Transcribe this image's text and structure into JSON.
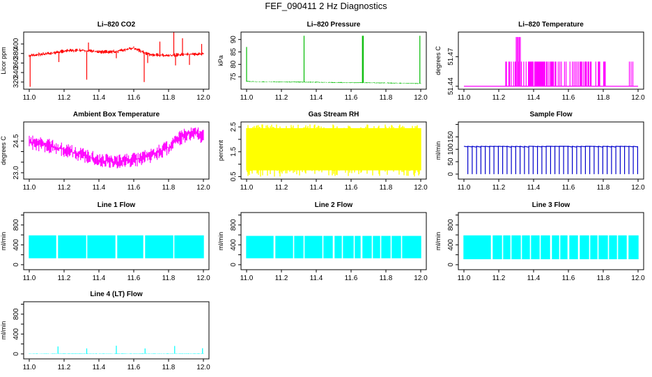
{
  "title": "FEF_090411  2 Hz Diagnostics",
  "colors": {
    "red": "#ff0000",
    "green": "#00bb00",
    "magenta": "#ff00ff",
    "yellow": "#ffff00",
    "blue": "#0000cc",
    "cyan": "#00ffff",
    "axis": "#000000"
  },
  "chart_data": [
    {
      "id": "co2",
      "type": "line",
      "title": "Li–820 CO2",
      "ylabel": "Licor ppm",
      "color": "red",
      "xlim": [
        11.0,
        12.0
      ],
      "ylim": [
        305,
        425
      ],
      "yticks": [
        320,
        340,
        360,
        380,
        400
      ],
      "xticks": [
        11.0,
        11.2,
        11.4,
        11.6,
        11.8,
        12.0
      ],
      "xticklabels": [
        "11.0",
        "11.2",
        "11.4",
        "11.6",
        "11.8",
        "12.0"
      ],
      "x": [
        11.0,
        11.05,
        11.1,
        11.2,
        11.3,
        11.4,
        11.5,
        11.55,
        11.6,
        11.65,
        11.7,
        11.8,
        11.9,
        12.0
      ],
      "y": [
        375,
        378,
        379,
        385,
        387,
        383,
        384,
        388,
        392,
        383,
        377,
        376,
        378,
        379
      ],
      "band": 4,
      "spikes": [
        {
          "x": 11.005,
          "y": 310
        },
        {
          "x": 11.17,
          "y": 362
        },
        {
          "x": 11.33,
          "y": 325
        },
        {
          "x": 11.34,
          "y": 403
        },
        {
          "x": 11.5,
          "y": 370
        },
        {
          "x": 11.66,
          "y": 320
        },
        {
          "x": 11.68,
          "y": 360
        },
        {
          "x": 11.75,
          "y": 405
        },
        {
          "x": 11.83,
          "y": 425
        },
        {
          "x": 11.84,
          "y": 355
        },
        {
          "x": 11.88,
          "y": 412
        },
        {
          "x": 11.92,
          "y": 356
        },
        {
          "x": 11.99,
          "y": 400
        }
      ]
    },
    {
      "id": "pressure",
      "type": "line",
      "title": "Li–820 Pressure",
      "ylabel": "kPa",
      "color": "green",
      "xlim": [
        11.0,
        12.0
      ],
      "ylim": [
        70,
        93
      ],
      "yticks": [
        75,
        80,
        85,
        90
      ],
      "xticks": [
        11.0,
        11.2,
        11.4,
        11.6,
        11.8,
        12.0
      ],
      "xticklabels": [
        "11.0",
        "11.2",
        "11.4",
        "11.6",
        "11.8",
        "12.0"
      ],
      "x": [
        11.0,
        11.1,
        11.3,
        11.5,
        11.7,
        11.9,
        12.0
      ],
      "y": [
        73.1,
        73.0,
        72.9,
        72.7,
        72.6,
        72.4,
        72.3
      ],
      "band": 0.2,
      "spikes": [
        {
          "x": 11.0,
          "y": 87
        },
        {
          "x": 11.33,
          "y": 91.5
        },
        {
          "x": 11.665,
          "y": 91.5
        },
        {
          "x": 11.67,
          "y": 91.5
        },
        {
          "x": 11.995,
          "y": 91.5
        }
      ]
    },
    {
      "id": "licor_temp",
      "type": "step",
      "title": "Li–820 Temperature",
      "ylabel": "degrees C",
      "color": "magenta",
      "xlim": [
        11.0,
        12.0
      ],
      "ylim": [
        51.437,
        51.495
      ],
      "yticks": [
        51.44,
        51.47
      ],
      "xticks": [
        11.0,
        11.2,
        11.4,
        11.6,
        11.8,
        12.0
      ],
      "xticklabels": [
        "11.0",
        "11.2",
        "11.4",
        "11.6",
        "11.8",
        "12.0"
      ],
      "ytick_labels": [
        "51.44",
        "51.47"
      ],
      "low": 51.44,
      "mid": 51.465,
      "high": 51.49,
      "mid_range": [
        11.24,
        11.82
      ],
      "high_range": [
        11.3,
        11.33
      ],
      "extra_mid": [
        11.95,
        11.97
      ]
    },
    {
      "id": "ambient_temp",
      "type": "line",
      "title": "Ambient Box Temperature",
      "ylabel": "degrees C",
      "color": "magenta",
      "xlim": [
        11.0,
        12.0
      ],
      "ylim": [
        22.7,
        25.4
      ],
      "yticks": [
        23.0,
        23.5,
        24.0,
        24.5
      ],
      "ytick_labels": [
        "23.0",
        "",
        "",
        "24.5"
      ],
      "xticks": [
        11.0,
        11.2,
        11.4,
        11.6,
        11.8,
        12.0
      ],
      "xticklabels": [
        "11.0",
        "11.2",
        "11.4",
        "11.6",
        "11.8",
        "12.0"
      ],
      "x": [
        11.0,
        11.1,
        11.2,
        11.3,
        11.4,
        11.5,
        11.6,
        11.7,
        11.8,
        11.85,
        11.9,
        11.95,
        12.0
      ],
      "y": [
        24.45,
        24.3,
        24.1,
        23.85,
        23.6,
        23.5,
        23.6,
        23.8,
        24.2,
        24.55,
        24.8,
        24.9,
        24.7
      ],
      "band": 0.35
    },
    {
      "id": "rh",
      "type": "band",
      "title": "Gas Stream RH",
      "ylabel": "percent",
      "color": "yellow",
      "xlim": [
        11.0,
        12.0
      ],
      "ylim": [
        0.4,
        2.7
      ],
      "yticks": [
        0.5,
        1.0,
        1.5,
        2.0,
        2.5
      ],
      "ytick_labels": [
        "0.5",
        "",
        "1.5",
        "",
        "2.5"
      ],
      "xticks": [
        11.0,
        11.2,
        11.4,
        11.6,
        11.8,
        12.0
      ],
      "xticklabels": [
        "11.0",
        "11.2",
        "11.4",
        "11.6",
        "11.8",
        "12.0"
      ],
      "top": 2.45,
      "bottom": 0.75,
      "top_peak": 2.6,
      "bottom_min": 0.5
    },
    {
      "id": "sample_flow",
      "type": "pulses",
      "title": "Sample Flow",
      "ylabel": "ml/min",
      "color": "blue",
      "xlim": [
        11.0,
        12.0
      ],
      "ylim": [
        -20,
        210
      ],
      "yticks": [
        0,
        50,
        100,
        150,
        200
      ],
      "ytick_labels": [
        "0",
        "50",
        "100",
        "150",
        ""
      ],
      "xticks": [
        11.0,
        11.2,
        11.4,
        11.6,
        11.8,
        12.0
      ],
      "xticklabels": [
        "11.0",
        "11.2",
        "11.4",
        "11.6",
        "11.8",
        "12.0"
      ],
      "level": 112,
      "drop": 0,
      "count": 40
    },
    {
      "id": "line1_flow",
      "type": "band",
      "title": "Line 1 Flow",
      "ylabel": "ml/min",
      "color": "cyan",
      "xlim": [
        11.0,
        12.0
      ],
      "ylim": [
        -100,
        1050
      ],
      "yticks": [
        0,
        200,
        400,
        600,
        800,
        1000
      ],
      "ytick_labels": [
        "0",
        "",
        "400",
        "",
        "800",
        ""
      ],
      "xticks": [
        11.0,
        11.2,
        11.4,
        11.6,
        11.8,
        12.0
      ],
      "xticklabels": [
        "11.0",
        "11.2",
        "11.4",
        "11.6",
        "11.8",
        "12.0"
      ],
      "top": 590,
      "bottom": 130,
      "gaps": [
        11.16,
        11.33,
        11.5,
        11.66,
        11.83
      ]
    },
    {
      "id": "line2_flow",
      "type": "band",
      "title": "Line 2 Flow",
      "ylabel": "ml/min",
      "color": "cyan",
      "xlim": [
        11.0,
        12.0
      ],
      "ylim": [
        -100,
        1050
      ],
      "yticks": [
        0,
        200,
        400,
        600,
        800,
        1000
      ],
      "ytick_labels": [
        "0",
        "",
        "400",
        "",
        "800",
        ""
      ],
      "xticks": [
        11.0,
        11.2,
        11.4,
        11.6,
        11.8,
        12.0
      ],
      "xticklabels": [
        "11.0",
        "11.2",
        "11.4",
        "11.6",
        "11.8",
        "12.0"
      ],
      "top": 580,
      "bottom": 130,
      "gaps": [
        11.16,
        11.27,
        11.33,
        11.44,
        11.5,
        11.55,
        11.62,
        11.66,
        11.72,
        11.77,
        11.83,
        11.89
      ]
    },
    {
      "id": "line3_flow",
      "type": "band",
      "title": "Line 3 Flow",
      "ylabel": "ml/min",
      "color": "cyan",
      "xlim": [
        11.0,
        12.0
      ],
      "ylim": [
        -100,
        1050
      ],
      "yticks": [
        0,
        200,
        400,
        600,
        800,
        1000
      ],
      "ytick_labels": [
        "0",
        "",
        "400",
        "",
        "800",
        ""
      ],
      "xticks": [
        11.0,
        11.2,
        11.4,
        11.6,
        11.8,
        12.0
      ],
      "xticklabels": [
        "11.0",
        "11.2",
        "11.4",
        "11.6",
        "11.8",
        "12.0"
      ],
      "top": 590,
      "bottom": 110,
      "gaps": [
        11.16,
        11.22,
        11.27,
        11.33,
        11.38,
        11.44,
        11.5,
        11.55,
        11.6,
        11.66,
        11.72,
        11.77,
        11.83,
        11.88,
        11.94
      ]
    },
    {
      "id": "line4_flow",
      "type": "line",
      "title": "Line 4 (LT) Flow",
      "ylabel": "ml/min",
      "color": "cyan",
      "xlim": [
        11.0,
        12.0
      ],
      "ylim": [
        -100,
        1050
      ],
      "yticks": [
        0,
        200,
        400,
        600,
        800,
        1000
      ],
      "ytick_labels": [
        "0",
        "",
        "400",
        "",
        "800",
        ""
      ],
      "xticks": [
        11.0,
        11.2,
        11.4,
        11.6,
        11.8,
        12.0
      ],
      "xticklabels": [
        "11.0",
        "11.2",
        "11.4",
        "11.6",
        "11.8",
        "12.0"
      ],
      "x": [
        11.0,
        12.0
      ],
      "y": [
        5,
        5
      ],
      "band": 6,
      "spikes": [
        {
          "x": 11.165,
          "y": 150
        },
        {
          "x": 11.33,
          "y": 110
        },
        {
          "x": 11.5,
          "y": 165
        },
        {
          "x": 11.665,
          "y": 110
        },
        {
          "x": 11.835,
          "y": 160
        },
        {
          "x": 11.995,
          "y": 115
        }
      ]
    }
  ]
}
